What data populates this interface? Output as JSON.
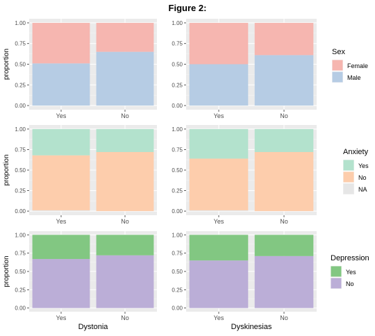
{
  "figure_title": "Figure 2:",
  "colors": {
    "panel_bg": "#ebebeb",
    "grid_major": "#ffffff",
    "grid_minor": "#f5f5f5",
    "axis_text": "#4d4d4d",
    "female": "#f6b6b0",
    "male": "#b6cce4",
    "anxiety_yes": "#b3e2cd",
    "anxiety_no": "#fdcdac",
    "anxiety_na": "#e6e6e6",
    "depression_yes": "#82c782",
    "depression_no": "#bbaed7"
  },
  "chart_data": [
    {
      "type": "bar",
      "stacked": true,
      "row": "Sex",
      "panel": "Dystonia",
      "categories": [
        "Yes",
        "No"
      ],
      "series": [
        {
          "name": "Male",
          "values": [
            0.51,
            0.65
          ]
        },
        {
          "name": "Female",
          "values": [
            0.49,
            0.35
          ]
        }
      ],
      "ylabel": "proportion",
      "ylim": [
        0,
        1
      ],
      "yticks": [
        "0.00",
        "0.25",
        "0.50",
        "0.75",
        "1.00"
      ],
      "grid": true
    },
    {
      "type": "bar",
      "stacked": true,
      "row": "Sex",
      "panel": "Dyskinesias",
      "categories": [
        "Yes",
        "No"
      ],
      "series": [
        {
          "name": "Male",
          "values": [
            0.5,
            0.61
          ]
        },
        {
          "name": "Female",
          "values": [
            0.5,
            0.39
          ]
        }
      ],
      "ylim": [
        0,
        1
      ],
      "yticks": [
        "0.00",
        "0.25",
        "0.50",
        "0.75",
        "1.00"
      ],
      "grid": true
    },
    {
      "type": "bar",
      "stacked": true,
      "row": "Anxiety",
      "panel": "Dystonia",
      "categories": [
        "Yes",
        "No"
      ],
      "series": [
        {
          "name": "NA",
          "values": [
            0.01,
            0.0
          ]
        },
        {
          "name": "No",
          "values": [
            0.67,
            0.72
          ]
        },
        {
          "name": "Yes",
          "values": [
            0.32,
            0.28
          ]
        }
      ],
      "ylabel": "proportion",
      "ylim": [
        0,
        1
      ],
      "yticks": [
        "0.00",
        "0.25",
        "0.50",
        "0.75",
        "1.00"
      ],
      "grid": true
    },
    {
      "type": "bar",
      "stacked": true,
      "row": "Anxiety",
      "panel": "Dyskinesias",
      "categories": [
        "Yes",
        "No"
      ],
      "series": [
        {
          "name": "NA",
          "values": [
            0.01,
            0.0
          ]
        },
        {
          "name": "No",
          "values": [
            0.63,
            0.72
          ]
        },
        {
          "name": "Yes",
          "values": [
            0.36,
            0.28
          ]
        }
      ],
      "ylim": [
        0,
        1
      ],
      "yticks": [
        "0.00",
        "0.25",
        "0.50",
        "0.75",
        "1.00"
      ],
      "grid": true
    },
    {
      "type": "bar",
      "stacked": true,
      "row": "Depression",
      "panel": "Dystonia",
      "categories": [
        "Yes",
        "No"
      ],
      "series": [
        {
          "name": "No",
          "values": [
            0.67,
            0.72
          ]
        },
        {
          "name": "Yes",
          "values": [
            0.33,
            0.28
          ]
        }
      ],
      "ylabel": "proportion",
      "xlabel": "Dystonia",
      "ylim": [
        0,
        1
      ],
      "yticks": [
        "0.00",
        "0.25",
        "0.50",
        "0.75",
        "1.00"
      ],
      "grid": true
    },
    {
      "type": "bar",
      "stacked": true,
      "row": "Depression",
      "panel": "Dyskinesias",
      "categories": [
        "Yes",
        "No"
      ],
      "series": [
        {
          "name": "No",
          "values": [
            0.65,
            0.71
          ]
        },
        {
          "name": "Yes",
          "values": [
            0.35,
            0.29
          ]
        }
      ],
      "xlabel": "Dyskinesias",
      "ylim": [
        0,
        1
      ],
      "yticks": [
        "0.00",
        "0.25",
        "0.50",
        "0.75",
        "1.00"
      ],
      "grid": true
    }
  ],
  "legends": [
    {
      "title": "Sex",
      "entries": [
        {
          "label": "Female",
          "color_key": "female"
        },
        {
          "label": "Male",
          "color_key": "male"
        }
      ]
    },
    {
      "title": "Anxiety",
      "entries": [
        {
          "label": "Yes",
          "color_key": "anxiety_yes"
        },
        {
          "label": "No",
          "color_key": "anxiety_no"
        },
        {
          "label": "NA",
          "color_key": "anxiety_na"
        }
      ]
    },
    {
      "title": "Depression",
      "entries": [
        {
          "label": "Yes",
          "color_key": "depression_yes"
        },
        {
          "label": "No",
          "color_key": "depression_no"
        }
      ]
    }
  ]
}
